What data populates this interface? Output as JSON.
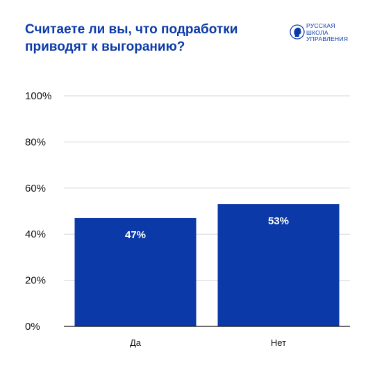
{
  "header": {
    "title_line1": "Считаете ли вы, что подработки",
    "title_line2": "приводят к выгоранию?"
  },
  "logo": {
    "icon": "profile-head-seal-icon",
    "line1": "РУССКАЯ",
    "line2": "ШКОЛА",
    "line3": "УПРАВЛЕНИЯ"
  },
  "colors": {
    "bar": "#0b3aa8",
    "title": "#0b3aa8",
    "grid": "#d6d6d6",
    "baseline": "#111111"
  },
  "chart_data": {
    "type": "bar",
    "title": "Считаете ли вы, что подработки приводят к выгоранию?",
    "xlabel": "",
    "ylabel": "",
    "categories": [
      "Да",
      "Нет"
    ],
    "values": [
      47,
      53
    ],
    "data_labels": [
      "47%",
      "53%"
    ],
    "ylim": [
      0,
      100
    ],
    "yticks": [
      0,
      20,
      40,
      60,
      80,
      100
    ],
    "ytick_labels": [
      "0%",
      "20%",
      "40%",
      "60%",
      "80%",
      "100%"
    ],
    "grid": true,
    "legend": "none"
  }
}
